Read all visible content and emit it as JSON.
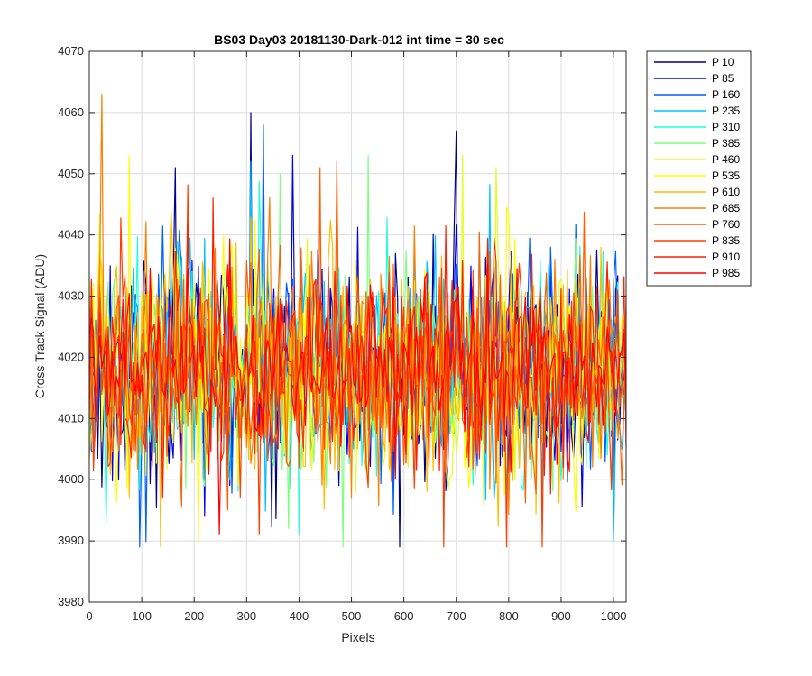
{
  "chart_data": {
    "type": "line",
    "title": "BS03 Day03 20181130-Dark-012 int time = 30 sec",
    "xlabel": "Pixels",
    "ylabel": "Cross Track Signal (ADU)",
    "xlim": [
      0,
      1024
    ],
    "ylim": [
      3980,
      4070
    ],
    "x_ticks": [
      0,
      100,
      200,
      300,
      400,
      500,
      600,
      700,
      800,
      900,
      1000
    ],
    "y_ticks": [
      3980,
      3990,
      4000,
      4010,
      4020,
      4030,
      4040,
      4050,
      4060,
      4070
    ],
    "grid": true,
    "legend_position": "outside-top-right",
    "x_step": 4,
    "series_summary": "Each series is noisy dark-frame cross-track signal around ~4018 ADU, range ~3989–4063 ADU",
    "series": [
      {
        "name": "P 10",
        "color": "#00008F",
        "mean": 4018,
        "spread": 9,
        "peaks": [
          {
            "x": 308,
            "y": 4060
          },
          {
            "x": 700,
            "y": 4057
          },
          {
            "x": 164,
            "y": 4051
          }
        ]
      },
      {
        "name": "P 85",
        "color": "#0000EF",
        "mean": 4018,
        "spread": 9,
        "peaks": [
          {
            "x": 386,
            "y": 4053
          }
        ]
      },
      {
        "name": "P 160",
        "color": "#005FFF",
        "mean": 4018,
        "spread": 9,
        "peaks": [
          {
            "x": 96,
            "y": 3989
          }
        ]
      },
      {
        "name": "P 235",
        "color": "#00BFFF",
        "mean": 4018,
        "spread": 9,
        "peaks": [
          {
            "x": 306,
            "y": 4052
          },
          {
            "x": 1000,
            "y": 3990
          }
        ]
      },
      {
        "name": "P 310",
        "color": "#1FFFDF",
        "mean": 4018,
        "spread": 9,
        "peaks": [
          {
            "x": 400,
            "y": 3991
          }
        ]
      },
      {
        "name": "P 385",
        "color": "#7FFF7F",
        "mean": 4018,
        "spread": 9,
        "peaks": [
          {
            "x": 362,
            "y": 4050
          }
        ]
      },
      {
        "name": "P 460",
        "color": "#DFFF1F",
        "mean": 4018,
        "spread": 9,
        "peaks": [
          {
            "x": 710,
            "y": 4053
          },
          {
            "x": 774,
            "y": 4051
          }
        ]
      },
      {
        "name": "P 535",
        "color": "#FFFF00",
        "mean": 4018,
        "spread": 9,
        "peaks": [
          {
            "x": 76,
            "y": 4053
          },
          {
            "x": 206,
            "y": 3990
          }
        ]
      },
      {
        "name": "P 610",
        "color": "#FFBF00",
        "mean": 4018,
        "spread": 9,
        "peaks": [
          {
            "x": 156,
            "y": 4044
          }
        ]
      },
      {
        "name": "P 685",
        "color": "#FF7F00",
        "mean": 4018,
        "spread": 9,
        "peaks": [
          {
            "x": 22,
            "y": 4063
          }
        ]
      },
      {
        "name": "P 760",
        "color": "#FF5F00",
        "mean": 4018,
        "spread": 9,
        "peaks": [
          {
            "x": 472,
            "y": 4052
          },
          {
            "x": 440,
            "y": 4051
          }
        ]
      },
      {
        "name": "P 835",
        "color": "#FF3F00",
        "mean": 4018,
        "spread": 9,
        "peaks": [
          {
            "x": 324,
            "y": 3991
          }
        ]
      },
      {
        "name": "P 910",
        "color": "#FF1F00",
        "mean": 4018,
        "spread": 9,
        "peaks": [
          {
            "x": 236,
            "y": 4046
          }
        ]
      },
      {
        "name": "P 985",
        "color": "#FF0000",
        "mean": 4018,
        "spread": 7,
        "peaks": [
          {
            "x": 246,
            "y": 3991
          }
        ]
      }
    ]
  }
}
